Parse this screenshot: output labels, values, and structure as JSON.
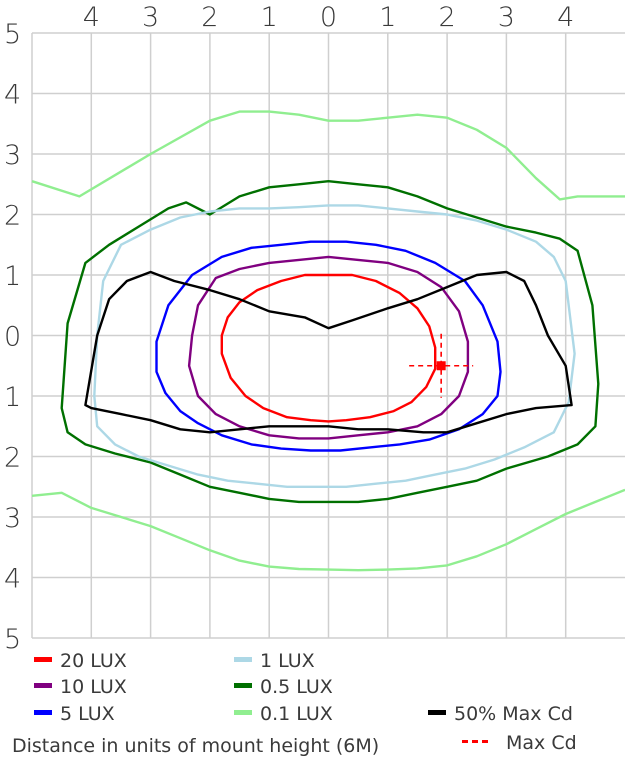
{
  "chart_data": {
    "type": "line",
    "title": "",
    "xlabel": "Distance in units of mount height (6M)",
    "ylabel": "",
    "xlim": [
      -5,
      5
    ],
    "ylim": [
      -5,
      5
    ],
    "grid": true,
    "x_ticks": [
      -4,
      -3,
      -2,
      -1,
      0,
      1,
      2,
      3,
      4
    ],
    "x_tick_labels": [
      "4",
      "3",
      "2",
      "1",
      "0",
      "1",
      "2",
      "3",
      "4"
    ],
    "y_ticks": [
      5,
      4,
      3,
      2,
      1,
      0,
      -1,
      -2,
      -3,
      -4,
      -5
    ],
    "y_tick_labels": [
      "5",
      "4",
      "3",
      "2",
      "1",
      "0",
      "1",
      "2",
      "3",
      "4",
      "5"
    ],
    "series": [
      {
        "name": "0.1 LUX",
        "color": "#90ee90",
        "closed": false,
        "x": [
          -5.0,
          -4.2,
          -3.0,
          -2.0,
          -1.5,
          -1.0,
          -0.5,
          0.0,
          0.5,
          1.0,
          1.5,
          2.0,
          2.5,
          3.0,
          3.5,
          3.9,
          4.2,
          5.0
        ],
        "y": [
          2.55,
          2.3,
          3.0,
          3.55,
          3.7,
          3.7,
          3.65,
          3.55,
          3.55,
          3.6,
          3.65,
          3.6,
          3.4,
          3.1,
          2.6,
          2.25,
          2.3,
          2.3
        ]
      },
      {
        "name": "0.1 LUX",
        "color": "#90ee90",
        "closed": false,
        "x": [
          -5.0,
          -4.5,
          -4.0,
          -3.0,
          -2.5,
          -2.0,
          -1.5,
          -1.0,
          -0.5,
          0.0,
          0.5,
          1.0,
          1.5,
          2.0,
          2.5,
          3.0,
          3.5,
          4.0,
          4.5,
          5.0
        ],
        "y": [
          -2.65,
          -2.6,
          -2.85,
          -3.15,
          -3.35,
          -3.55,
          -3.72,
          -3.82,
          -3.86,
          -3.87,
          -3.88,
          -3.87,
          -3.85,
          -3.8,
          -3.65,
          -3.45,
          -3.2,
          -2.95,
          -2.75,
          -2.55
        ]
      },
      {
        "name": "0.5 LUX",
        "color": "#007000",
        "closed": true,
        "x": [
          -4.5,
          -4.4,
          -4.1,
          -3.7,
          -3.2,
          -2.7,
          -2.4,
          -2.0,
          -1.5,
          -1.0,
          -0.5,
          0.0,
          0.5,
          1.0,
          1.5,
          2.0,
          2.5,
          3.0,
          3.5,
          3.9,
          4.2,
          4.45,
          4.55,
          4.5,
          4.2,
          3.7,
          3.0,
          2.5,
          2.0,
          1.5,
          1.0,
          0.5,
          0.0,
          -0.5,
          -1.0,
          -1.5,
          -2.0,
          -2.5,
          -3.0,
          -3.6,
          -4.1,
          -4.4,
          -4.5
        ],
        "y": [
          -1.2,
          0.2,
          1.2,
          1.5,
          1.8,
          2.1,
          2.2,
          2.0,
          2.3,
          2.45,
          2.5,
          2.55,
          2.5,
          2.45,
          2.3,
          2.1,
          1.95,
          1.8,
          1.7,
          1.6,
          1.4,
          0.5,
          -0.8,
          -1.5,
          -1.8,
          -2.0,
          -2.2,
          -2.4,
          -2.5,
          -2.6,
          -2.7,
          -2.75,
          -2.75,
          -2.75,
          -2.7,
          -2.6,
          -2.5,
          -2.3,
          -2.1,
          -1.95,
          -1.8,
          -1.6,
          -1.2
        ]
      },
      {
        "name": "1 LUX",
        "color": "#add8e6",
        "closed": true,
        "x": [
          -3.95,
          -3.9,
          -3.8,
          -3.5,
          -3.0,
          -2.5,
          -2.0,
          -1.5,
          -1.0,
          -0.5,
          0.0,
          0.5,
          1.0,
          1.5,
          2.0,
          2.5,
          3.0,
          3.5,
          3.8,
          4.0,
          4.15,
          4.05,
          3.8,
          3.3,
          2.8,
          2.3,
          1.8,
          1.3,
          0.8,
          0.3,
          -0.2,
          -0.7,
          -1.2,
          -1.7,
          -2.2,
          -2.7,
          -3.2,
          -3.6,
          -3.9,
          -3.95
        ],
        "y": [
          -1.0,
          0.0,
          0.9,
          1.5,
          1.75,
          1.95,
          2.05,
          2.1,
          2.1,
          2.12,
          2.15,
          2.15,
          2.1,
          2.05,
          2.0,
          1.9,
          1.75,
          1.55,
          1.3,
          0.9,
          -0.3,
          -1.1,
          -1.6,
          -1.85,
          -2.05,
          -2.2,
          -2.3,
          -2.4,
          -2.45,
          -2.5,
          -2.5,
          -2.5,
          -2.45,
          -2.4,
          -2.3,
          -2.15,
          -2.0,
          -1.8,
          -1.5,
          -1.0
        ]
      },
      {
        "name": "5 LUX",
        "color": "#0000ff",
        "closed": true,
        "x": [
          -2.9,
          -2.9,
          -2.7,
          -2.3,
          -1.8,
          -1.3,
          -0.8,
          -0.3,
          0.3,
          0.8,
          1.3,
          1.8,
          2.3,
          2.6,
          2.85,
          2.9,
          2.85,
          2.6,
          2.2,
          1.7,
          1.2,
          0.7,
          0.2,
          -0.3,
          -0.8,
          -1.3,
          -1.8,
          -2.2,
          -2.5,
          -2.75,
          -2.9
        ],
        "y": [
          -0.6,
          -0.1,
          0.5,
          1.0,
          1.3,
          1.45,
          1.5,
          1.55,
          1.55,
          1.5,
          1.4,
          1.2,
          0.9,
          0.5,
          -0.1,
          -0.6,
          -1.0,
          -1.3,
          -1.55,
          -1.72,
          -1.8,
          -1.85,
          -1.9,
          -1.9,
          -1.87,
          -1.8,
          -1.65,
          -1.45,
          -1.25,
          -0.95,
          -0.6
        ]
      },
      {
        "name": "10 LUX",
        "color": "#800080",
        "closed": true,
        "x": [
          -2.35,
          -2.3,
          -2.2,
          -1.9,
          -1.5,
          -1.0,
          -0.5,
          0.0,
          0.5,
          1.0,
          1.5,
          1.9,
          2.2,
          2.35,
          2.35,
          2.2,
          1.9,
          1.5,
          1.0,
          0.5,
          0.0,
          -0.5,
          -1.0,
          -1.5,
          -1.9,
          -2.2,
          -2.35
        ],
        "y": [
          -0.5,
          0.0,
          0.5,
          0.95,
          1.1,
          1.2,
          1.25,
          1.3,
          1.25,
          1.2,
          1.05,
          0.8,
          0.4,
          -0.1,
          -0.6,
          -1.0,
          -1.3,
          -1.5,
          -1.6,
          -1.65,
          -1.7,
          -1.7,
          -1.65,
          -1.5,
          -1.3,
          -1.0,
          -0.5
        ]
      },
      {
        "name": "20 LUX",
        "color": "#ff0000",
        "closed": true,
        "x": [
          -1.8,
          -1.8,
          -1.7,
          -1.5,
          -1.2,
          -0.8,
          -0.4,
          0.0,
          0.4,
          0.8,
          1.2,
          1.5,
          1.7,
          1.8,
          1.8,
          1.65,
          1.4,
          1.1,
          0.7,
          0.3,
          0.0,
          -0.3,
          -0.7,
          -1.1,
          -1.4,
          -1.65,
          -1.8
        ],
        "y": [
          -0.3,
          0.0,
          0.3,
          0.55,
          0.75,
          0.9,
          1.0,
          1.0,
          1.0,
          0.9,
          0.7,
          0.45,
          0.15,
          -0.2,
          -0.55,
          -0.85,
          -1.1,
          -1.25,
          -1.35,
          -1.4,
          -1.42,
          -1.4,
          -1.35,
          -1.2,
          -1.0,
          -0.7,
          -0.3
        ]
      },
      {
        "name": "50% Max Cd",
        "color": "#000000",
        "closed": true,
        "x": [
          -4.1,
          -3.9,
          -3.7,
          -3.4,
          -3.0,
          -2.6,
          -2.0,
          -1.5,
          -1.0,
          -0.4,
          0.0,
          0.4,
          1.0,
          1.5,
          2.0,
          2.5,
          3.0,
          3.3,
          3.5,
          3.7,
          4.0,
          4.1,
          3.5,
          3.0,
          2.5,
          2.0,
          1.6,
          1.0,
          0.5,
          0.0,
          -0.5,
          -1.0,
          -1.5,
          -2.0,
          -2.5,
          -3.0,
          -3.5,
          -4.0,
          -4.1
        ],
        "y": [
          -1.15,
          0.0,
          0.6,
          0.9,
          1.05,
          0.9,
          0.75,
          0.6,
          0.4,
          0.3,
          0.12,
          0.25,
          0.45,
          0.6,
          0.8,
          1.0,
          1.05,
          0.9,
          0.5,
          0.0,
          -0.5,
          -1.15,
          -1.2,
          -1.3,
          -1.45,
          -1.6,
          -1.6,
          -1.55,
          -1.55,
          -1.5,
          -1.5,
          -1.5,
          -1.55,
          -1.6,
          -1.55,
          -1.4,
          -1.3,
          -1.2,
          -1.15
        ]
      }
    ],
    "max_cd": {
      "name": "Max Cd",
      "color": "#ff0000",
      "x": 1.9,
      "y": -0.5
    }
  },
  "legend": [
    {
      "label": "20 LUX",
      "color": "#ff0000",
      "style": "solid"
    },
    {
      "label": "1 LUX",
      "color": "#add8e6",
      "style": "solid"
    },
    {
      "label": "10 LUX",
      "color": "#800080",
      "style": "solid"
    },
    {
      "label": "0.5 LUX",
      "color": "#007000",
      "style": "solid"
    },
    {
      "label": "5 LUX",
      "color": "#0000ff",
      "style": "solid"
    },
    {
      "label": "0.1 LUX",
      "color": "#90ee90",
      "style": "solid"
    },
    {
      "label": "50% Max Cd",
      "color": "#000000",
      "style": "solid"
    },
    {
      "label": "Max Cd",
      "color": "#ff0000",
      "style": "dashed"
    }
  ],
  "footer": {
    "xlabel": "Distance in units of mount height (6M)"
  }
}
